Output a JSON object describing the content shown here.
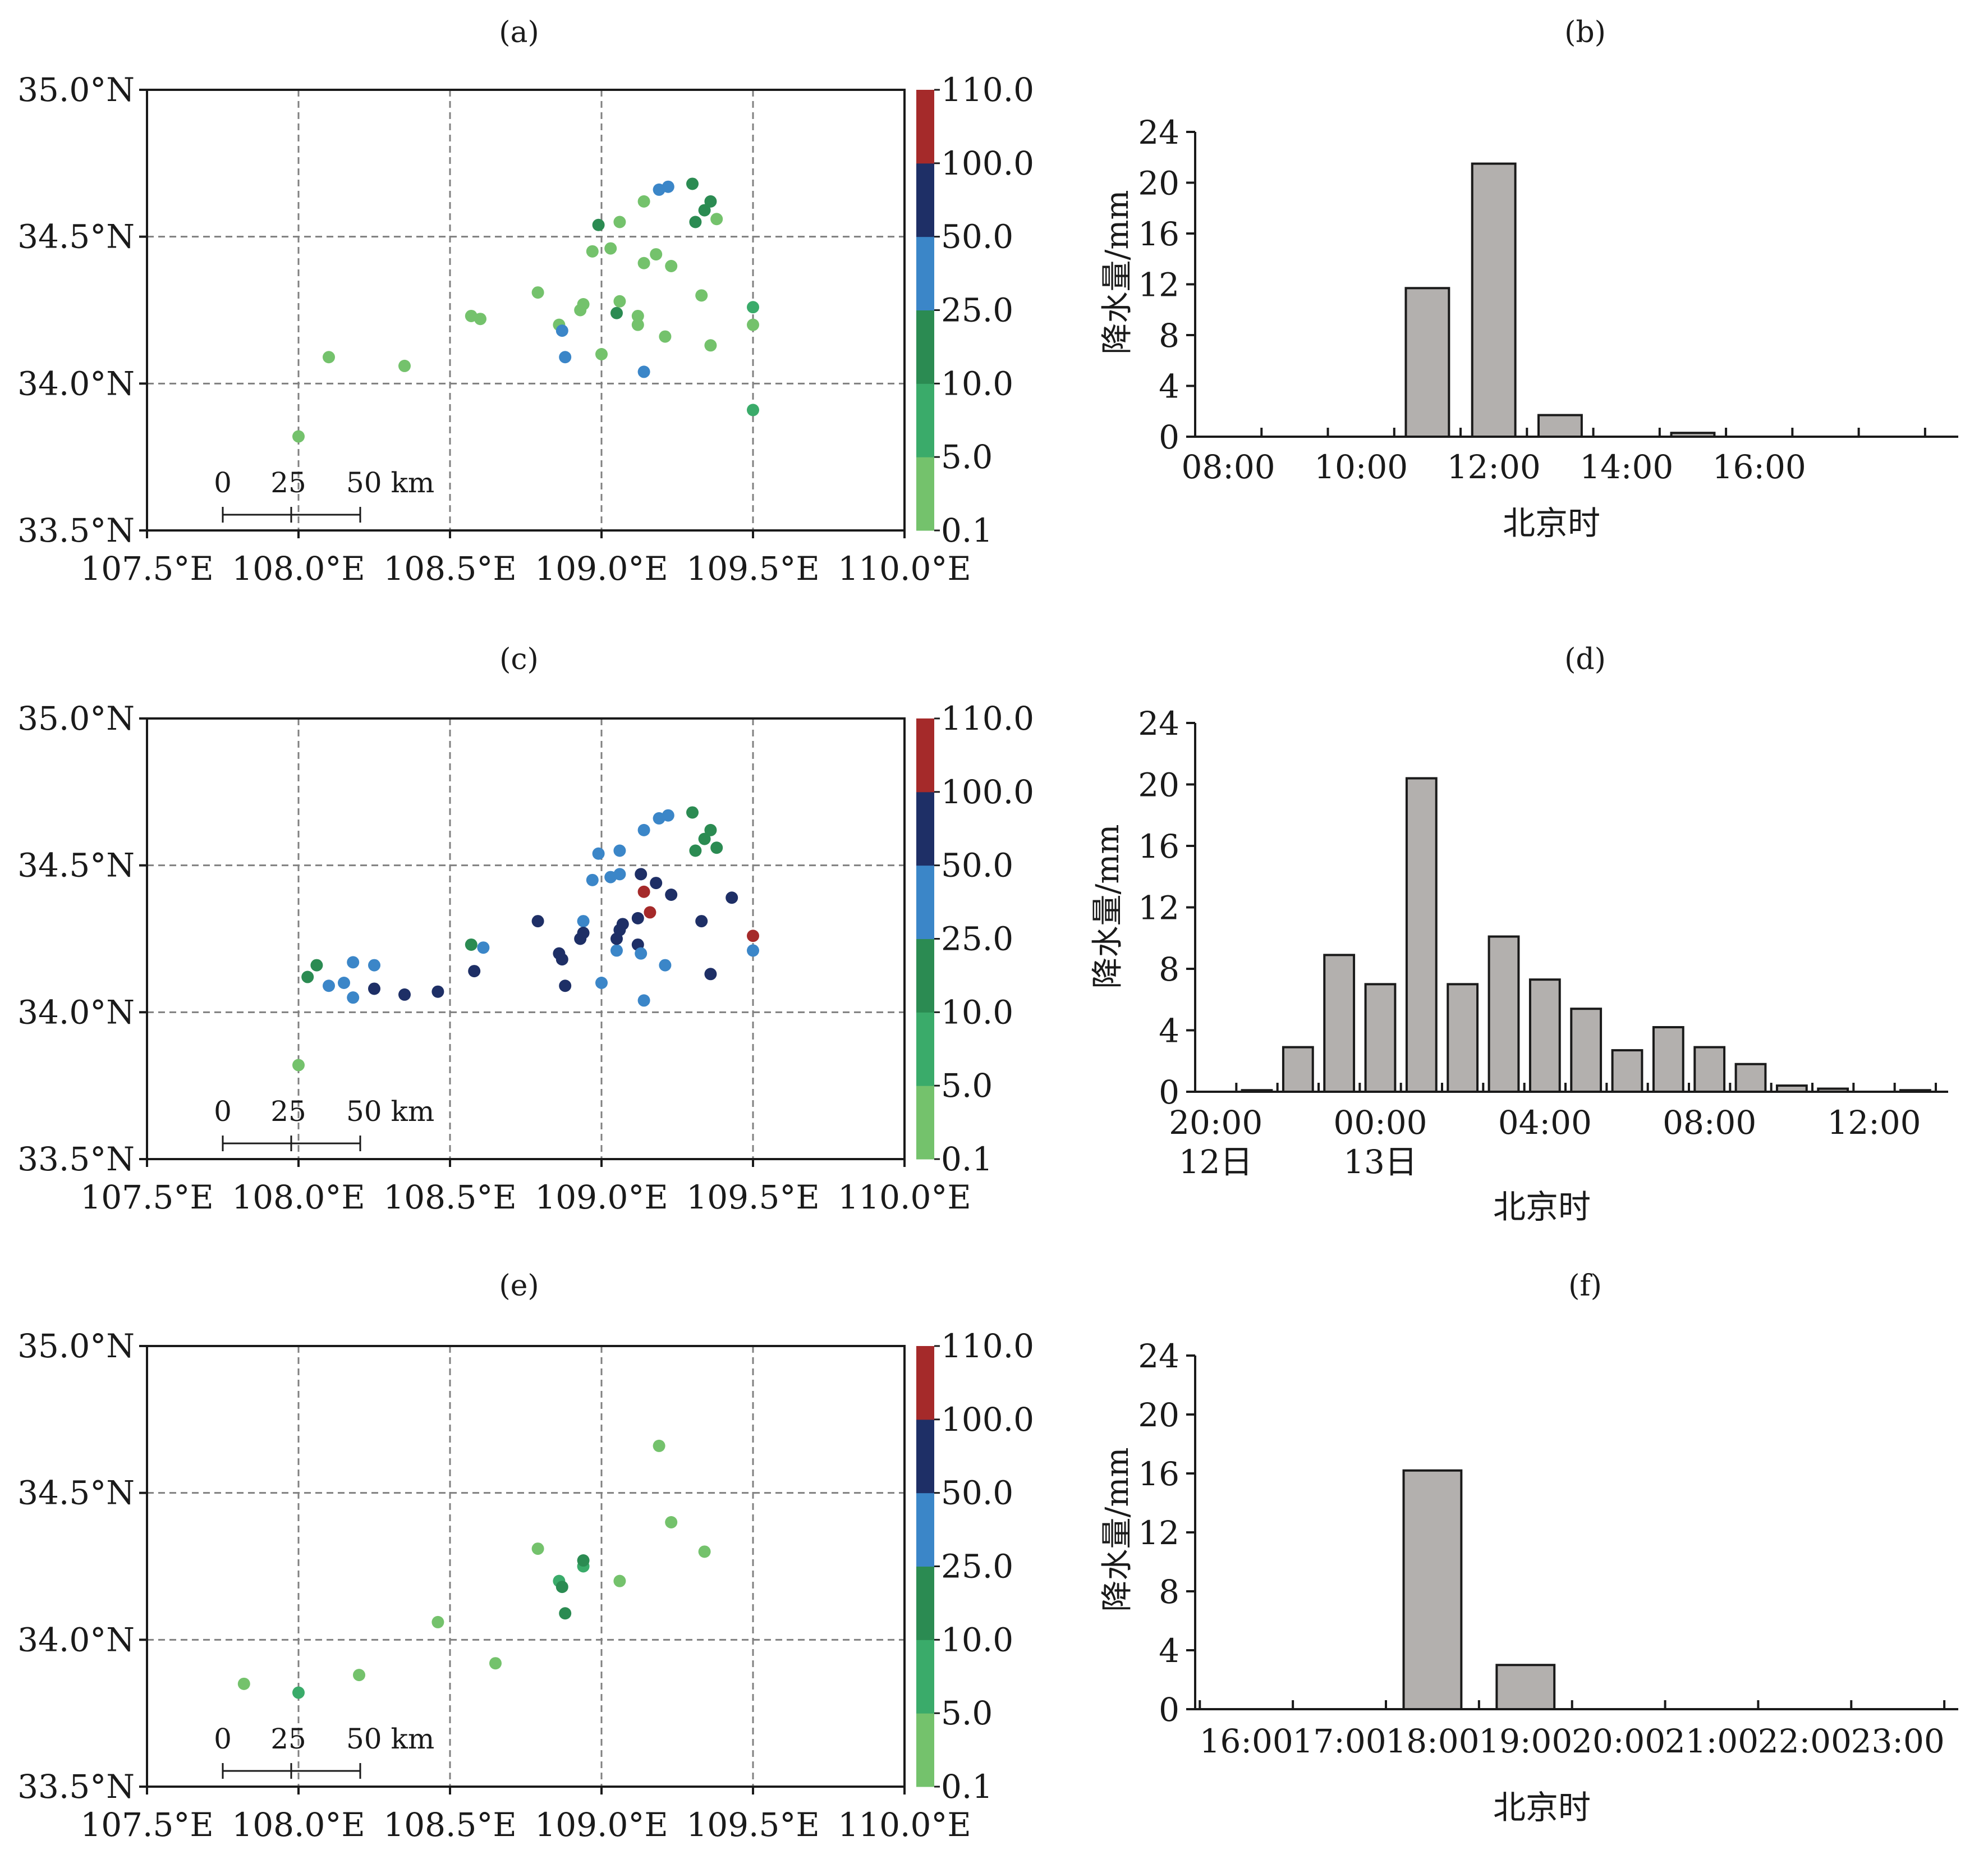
{
  "colors": {
    "bar_fill": "#b3b0ae",
    "axis": "#1a1a1a",
    "grid": "#808080",
    "point_colors": {
      "0.1-5.0": "#74c26c",
      "5.0-10.0": "#3aab6a",
      "10.0-25.0": "#2b8b52",
      "25.0-50.0": "#3b86c8",
      "50.0-100.0": "#1e2f66",
      "100.0-110.0": "#a52a2a"
    }
  },
  "shared": {
    "map_x_ticks": [
      "107.5°E",
      "108.0°E",
      "108.5°E",
      "109.0°E",
      "109.5°E",
      "110.0°E"
    ],
    "map_y_ticks": [
      "33.5°N",
      "34.0°N",
      "34.5°N",
      "35.0°N"
    ],
    "colorbar_labels": [
      "0.1",
      "5.0",
      "10.0",
      "25.0",
      "50.0",
      "100.0",
      "110.0"
    ],
    "scale_bar_labels": [
      "0",
      "25",
      "50 km"
    ],
    "bar_ylabel": "降水量/mm",
    "bar_xlabel": "北京时"
  },
  "chart_data": [
    {
      "panel": "(a)",
      "type": "scatter",
      "xlim": [
        107.5,
        110.0
      ],
      "ylim": [
        33.5,
        35.0
      ],
      "grid": true,
      "legend": "colorbar-right",
      "points": [
        [
          108.0,
          33.82,
          1
        ],
        [
          108.1,
          34.09,
          1
        ],
        [
          108.35,
          34.06,
          1
        ],
        [
          108.57,
          34.23,
          1
        ],
        [
          108.6,
          34.22,
          1
        ],
        [
          108.79,
          34.31,
          1
        ],
        [
          108.86,
          34.2,
          1
        ],
        [
          108.87,
          34.18,
          4
        ],
        [
          108.88,
          34.09,
          4
        ],
        [
          108.93,
          34.25,
          1
        ],
        [
          108.94,
          34.27,
          1
        ],
        [
          108.97,
          34.45,
          1
        ],
        [
          108.99,
          34.54,
          3
        ],
        [
          109.0,
          34.1,
          1
        ],
        [
          109.03,
          34.46,
          1
        ],
        [
          109.06,
          34.55,
          1
        ],
        [
          109.05,
          34.24,
          3
        ],
        [
          109.06,
          34.28,
          1
        ],
        [
          109.12,
          34.23,
          1
        ],
        [
          109.12,
          34.2,
          1
        ],
        [
          109.14,
          34.41,
          1
        ],
        [
          109.14,
          34.62,
          1
        ],
        [
          109.14,
          34.04,
          4
        ],
        [
          109.18,
          34.44,
          1
        ],
        [
          109.19,
          34.66,
          4
        ],
        [
          109.22,
          34.67,
          4
        ],
        [
          109.21,
          34.16,
          1
        ],
        [
          109.23,
          34.4,
          1
        ],
        [
          109.3,
          34.68,
          3
        ],
        [
          109.31,
          34.55,
          3
        ],
        [
          109.33,
          34.3,
          1
        ],
        [
          109.34,
          34.59,
          3
        ],
        [
          109.36,
          34.62,
          3
        ],
        [
          109.36,
          34.13,
          1
        ],
        [
          109.38,
          34.56,
          1
        ],
        [
          109.5,
          34.26,
          2
        ],
        [
          109.5,
          34.2,
          1
        ],
        [
          109.5,
          33.91,
          2
        ]
      ]
    },
    {
      "panel": "(b)",
      "type": "bar",
      "xlabel": "北京时",
      "ylabel": "降水量/mm",
      "ylim": [
        0,
        24
      ],
      "y_ticks": [
        0,
        4,
        8,
        12,
        16,
        20,
        24
      ],
      "x_ticks": [
        "08:00",
        "10:00",
        "12:00",
        "14:00",
        "16:00"
      ],
      "categories": [
        "08:00",
        "09:00",
        "10:00",
        "11:00",
        "12:00",
        "13:00",
        "14:00",
        "15:00",
        "16:00",
        "17:00"
      ],
      "values": [
        0,
        0,
        0,
        11.7,
        21.5,
        1.7,
        0,
        0.3,
        0,
        0
      ]
    },
    {
      "panel": "(c)",
      "type": "scatter",
      "xlim": [
        107.5,
        110.0
      ],
      "ylim": [
        33.5,
        35.0
      ],
      "grid": true,
      "legend": "colorbar-right",
      "points": [
        [
          108.0,
          33.82,
          1
        ],
        [
          108.03,
          34.12,
          3
        ],
        [
          108.06,
          34.16,
          3
        ],
        [
          108.1,
          34.09,
          4
        ],
        [
          108.15,
          34.1,
          4
        ],
        [
          108.18,
          34.05,
          4
        ],
        [
          108.18,
          34.17,
          4
        ],
        [
          108.25,
          34.16,
          4
        ],
        [
          108.25,
          34.08,
          5
        ],
        [
          108.35,
          34.06,
          5
        ],
        [
          108.46,
          34.07,
          5
        ],
        [
          108.57,
          34.23,
          3
        ],
        [
          108.58,
          34.14,
          5
        ],
        [
          108.61,
          34.22,
          4
        ],
        [
          108.79,
          34.31,
          5
        ],
        [
          108.86,
          34.2,
          5
        ],
        [
          108.87,
          34.18,
          5
        ],
        [
          108.88,
          34.09,
          5
        ],
        [
          108.93,
          34.25,
          5
        ],
        [
          108.94,
          34.31,
          4
        ],
        [
          108.94,
          34.27,
          5
        ],
        [
          108.97,
          34.45,
          4
        ],
        [
          108.99,
          34.54,
          4
        ],
        [
          109.0,
          34.1,
          4
        ],
        [
          109.03,
          34.46,
          4
        ],
        [
          109.06,
          34.47,
          4
        ],
        [
          109.06,
          34.55,
          4
        ],
        [
          109.05,
          34.21,
          4
        ],
        [
          109.05,
          34.25,
          5
        ],
        [
          109.07,
          34.3,
          5
        ],
        [
          109.06,
          34.28,
          5
        ],
        [
          109.12,
          34.32,
          5
        ],
        [
          109.12,
          34.23,
          5
        ],
        [
          109.13,
          34.2,
          4
        ],
        [
          109.13,
          34.47,
          5
        ],
        [
          109.14,
          34.41,
          6
        ],
        [
          109.14,
          34.62,
          4
        ],
        [
          109.14,
          34.04,
          4
        ],
        [
          109.16,
          34.34,
          6
        ],
        [
          109.18,
          34.44,
          5
        ],
        [
          109.19,
          34.66,
          4
        ],
        [
          109.21,
          34.16,
          4
        ],
        [
          109.22,
          34.67,
          4
        ],
        [
          109.23,
          34.4,
          5
        ],
        [
          109.3,
          34.68,
          3
        ],
        [
          109.31,
          34.55,
          3
        ],
        [
          109.33,
          34.31,
          5
        ],
        [
          109.34,
          34.59,
          3
        ],
        [
          109.36,
          34.62,
          3
        ],
        [
          109.36,
          34.13,
          5
        ],
        [
          109.38,
          34.56,
          3
        ],
        [
          109.43,
          34.39,
          5
        ],
        [
          109.5,
          34.26,
          6
        ],
        [
          109.5,
          34.21,
          4
        ]
      ]
    },
    {
      "panel": "(d)",
      "type": "bar",
      "xlabel": "北京时",
      "ylabel": "降水量/mm",
      "ylim": [
        0,
        24
      ],
      "y_ticks": [
        0,
        4,
        8,
        12,
        16,
        20,
        24
      ],
      "x_ticks": [
        "20:00",
        "00:00",
        "04:00",
        "08:00",
        "12:00"
      ],
      "x_subticks": [
        "12日",
        "13日"
      ],
      "categories": [
        "20:00",
        "21:00",
        "22:00",
        "23:00",
        "00:00",
        "01:00",
        "02:00",
        "03:00",
        "04:00",
        "05:00",
        "06:00",
        "07:00",
        "08:00",
        "09:00",
        "10:00",
        "11:00",
        "12:00",
        "13:00"
      ],
      "values": [
        0,
        0.1,
        2.9,
        8.9,
        7.0,
        20.4,
        7.0,
        10.1,
        7.3,
        5.4,
        2.7,
        4.2,
        2.9,
        1.8,
        0.4,
        0.2,
        0,
        0.1
      ]
    },
    {
      "panel": "(e)",
      "type": "scatter",
      "xlim": [
        107.5,
        110.0
      ],
      "ylim": [
        33.5,
        35.0
      ],
      "grid": true,
      "legend": "colorbar-right",
      "points": [
        [
          107.82,
          33.85,
          1
        ],
        [
          108.0,
          33.82,
          2
        ],
        [
          108.2,
          33.88,
          1
        ],
        [
          108.46,
          34.06,
          1
        ],
        [
          108.65,
          33.92,
          1
        ],
        [
          108.79,
          34.31,
          1
        ],
        [
          108.86,
          34.2,
          2
        ],
        [
          108.87,
          34.18,
          3
        ],
        [
          108.88,
          34.09,
          3
        ],
        [
          108.94,
          34.25,
          2
        ],
        [
          108.94,
          34.27,
          3
        ],
        [
          109.06,
          34.2,
          1
        ],
        [
          109.19,
          34.66,
          1
        ],
        [
          109.23,
          34.4,
          1
        ],
        [
          109.34,
          34.3,
          1
        ]
      ]
    },
    {
      "panel": "(f)",
      "type": "bar",
      "xlabel": "北京时",
      "ylabel": "降水量/mm",
      "ylim": [
        0,
        24
      ],
      "y_ticks": [
        0,
        4,
        8,
        12,
        16,
        20,
        24
      ],
      "x_ticks": [
        "16:00",
        "17:00",
        "18:00",
        "19:00",
        "20:00",
        "21:00",
        "22:00",
        "23:00"
      ],
      "categories": [
        "16:00",
        "17:00",
        "18:00",
        "19:00",
        "20:00",
        "21:00",
        "22:00",
        "23:00"
      ],
      "values": [
        0,
        0,
        16.2,
        3.0,
        0,
        0,
        0,
        0
      ]
    }
  ]
}
